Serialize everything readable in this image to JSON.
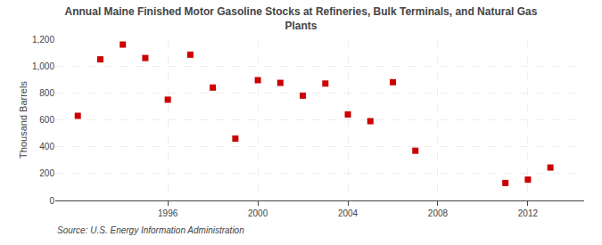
{
  "chart_data": {
    "type": "scatter",
    "title": "Annual Maine Finished Motor Gasoline Stocks at Refineries, Bulk Terminals, and Natural Gas\nPlants",
    "ylabel": "Thousand Barrels",
    "annotations": [
      "Source: U.S. Energy Information Administration"
    ],
    "x": [
      1992,
      1993,
      1994,
      1995,
      1996,
      1997,
      1998,
      1999,
      2000,
      2001,
      2002,
      2003,
      2004,
      2005,
      2006,
      2007,
      2011,
      2012,
      2013
    ],
    "values": [
      630,
      1050,
      1160,
      1060,
      750,
      1085,
      840,
      460,
      895,
      875,
      780,
      870,
      640,
      590,
      880,
      370,
      130,
      155,
      245
    ],
    "color": "#cc0000",
    "marker": "square",
    "xlim": [
      1991,
      2014.5
    ],
    "xticks": [
      1996,
      2000,
      2004,
      2008,
      2012
    ],
    "ylim": [
      0,
      1200
    ],
    "yticks": [
      0,
      200,
      400,
      600,
      800,
      {
        "value": 1000,
        "label": "1,000"
      },
      {
        "value": 1200,
        "label": "1,200"
      }
    ],
    "grid": true
  }
}
